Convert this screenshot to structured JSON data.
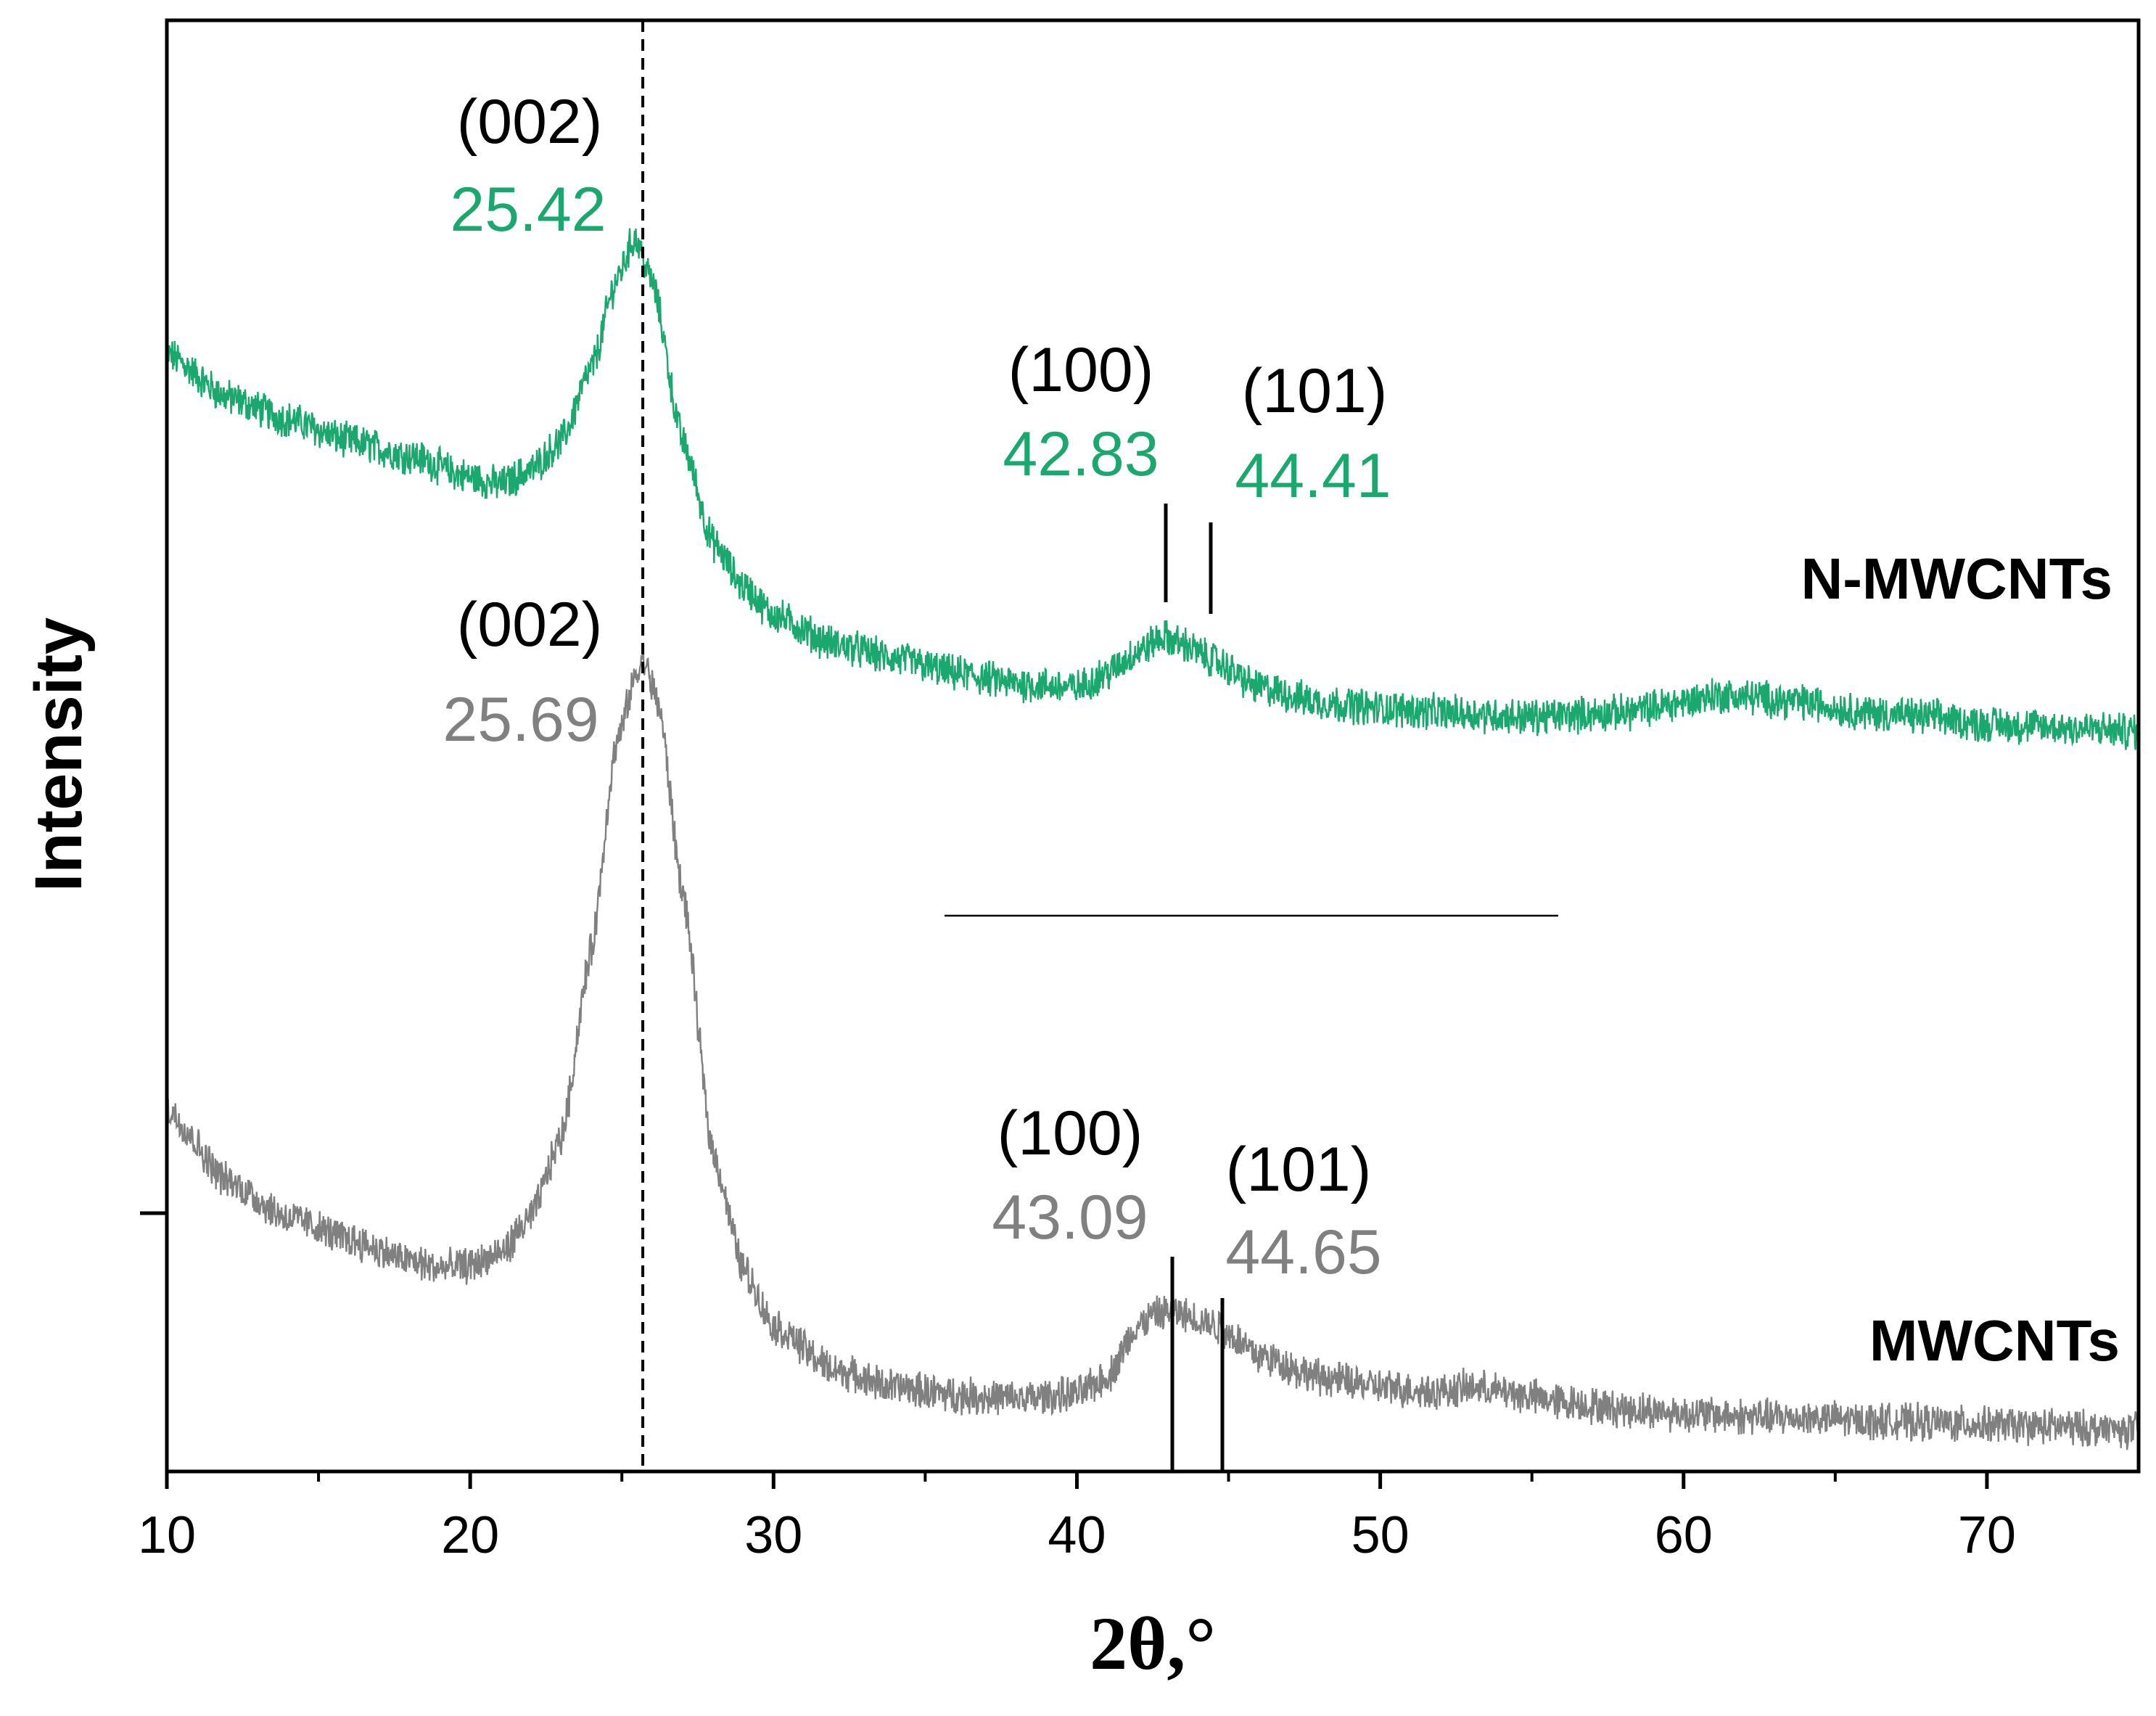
{
  "chart_data": {
    "type": "line",
    "title": "",
    "xlabel": "2θ,°",
    "ylabel": "Intensity",
    "xlim": [
      10,
      75
    ],
    "ylim": [
      0,
      100
    ],
    "x_major_ticks": [
      10,
      20,
      30,
      40,
      50,
      60,
      70
    ],
    "x_minor_ticks": [
      15,
      25,
      35,
      45,
      55,
      65
    ],
    "grid": false,
    "reference_line": {
      "x": 25.69,
      "style": "dashed"
    },
    "series": [
      {
        "name": "N-MWCNTs",
        "color": "#1aa86e",
        "baseline": 44,
        "noise": 1.1,
        "points": [
          [
            10,
            77
          ],
          [
            12,
            74
          ],
          [
            14,
            72.5
          ],
          [
            16,
            71
          ],
          [
            18,
            70
          ],
          [
            20,
            68.5
          ],
          [
            21,
            68
          ],
          [
            22,
            69
          ],
          [
            23,
            71
          ],
          [
            24,
            76
          ],
          [
            24.8,
            82
          ],
          [
            25.42,
            85
          ],
          [
            26,
            82
          ],
          [
            27,
            71
          ],
          [
            28,
            64
          ],
          [
            29,
            61
          ],
          [
            30,
            59
          ],
          [
            32,
            57
          ],
          [
            34,
            56
          ],
          [
            36,
            55
          ],
          [
            38,
            54.3
          ],
          [
            40,
            54
          ],
          [
            41,
            55
          ],
          [
            42,
            56.5
          ],
          [
            42.83,
            57.5
          ],
          [
            43.5,
            57
          ],
          [
            44.41,
            56
          ],
          [
            46,
            54
          ],
          [
            48,
            53
          ],
          [
            50,
            52.6
          ],
          [
            52,
            52.3
          ],
          [
            55,
            52
          ],
          [
            58,
            52.3
          ],
          [
            60,
            53
          ],
          [
            61,
            53.5
          ],
          [
            62,
            53.4
          ],
          [
            64,
            53
          ],
          [
            66,
            52.3
          ],
          [
            68,
            52
          ],
          [
            70,
            51.5
          ],
          [
            72,
            51.3
          ],
          [
            75,
            51
          ]
        ],
        "peaks": [
          {
            "hkl": "(002)",
            "position": "25.42"
          },
          {
            "hkl": "(100)",
            "position": "42.83"
          },
          {
            "hkl": "(101)",
            "position": "44.41"
          }
        ]
      },
      {
        "name": "MWCNTs",
        "color": "#808080",
        "baseline": 4,
        "noise": 1.1,
        "points": [
          [
            10,
            25
          ],
          [
            12,
            20
          ],
          [
            14,
            17.5
          ],
          [
            16,
            16
          ],
          [
            18,
            14.5
          ],
          [
            19,
            14
          ],
          [
            20,
            14.2
          ],
          [
            21,
            15
          ],
          [
            22,
            17.5
          ],
          [
            23,
            23
          ],
          [
            24,
            36
          ],
          [
            24.8,
            50
          ],
          [
            25.5,
            55
          ],
          [
            25.69,
            56
          ],
          [
            26.2,
            53
          ],
          [
            27,
            40
          ],
          [
            28,
            22
          ],
          [
            29,
            14
          ],
          [
            30,
            10
          ],
          [
            32,
            7
          ],
          [
            34,
            5.8
          ],
          [
            36,
            5.3
          ],
          [
            38,
            5
          ],
          [
            40,
            5.3
          ],
          [
            41,
            6.5
          ],
          [
            42,
            10
          ],
          [
            42.6,
            10.8
          ],
          [
            43.09,
            11
          ],
          [
            44,
            10.5
          ],
          [
            44.65,
            10
          ],
          [
            45,
            9.5
          ],
          [
            46,
            8
          ],
          [
            48,
            6.5
          ],
          [
            50,
            5.8
          ],
          [
            52,
            5.5
          ],
          [
            53,
            5.8
          ],
          [
            54,
            5.5
          ],
          [
            56,
            4.8
          ],
          [
            58,
            4.3
          ],
          [
            60,
            4
          ],
          [
            62,
            3.8
          ],
          [
            64,
            3.7
          ],
          [
            66,
            3.5
          ],
          [
            68,
            3.4
          ],
          [
            70,
            3.2
          ],
          [
            72,
            3.1
          ],
          [
            75,
            2.8
          ]
        ],
        "peaks": [
          {
            "hkl": "(002)",
            "position": "25.69"
          },
          {
            "hkl": "(100)",
            "position": "43.09"
          },
          {
            "hkl": "(101)",
            "position": "44.65"
          }
        ]
      }
    ]
  }
}
